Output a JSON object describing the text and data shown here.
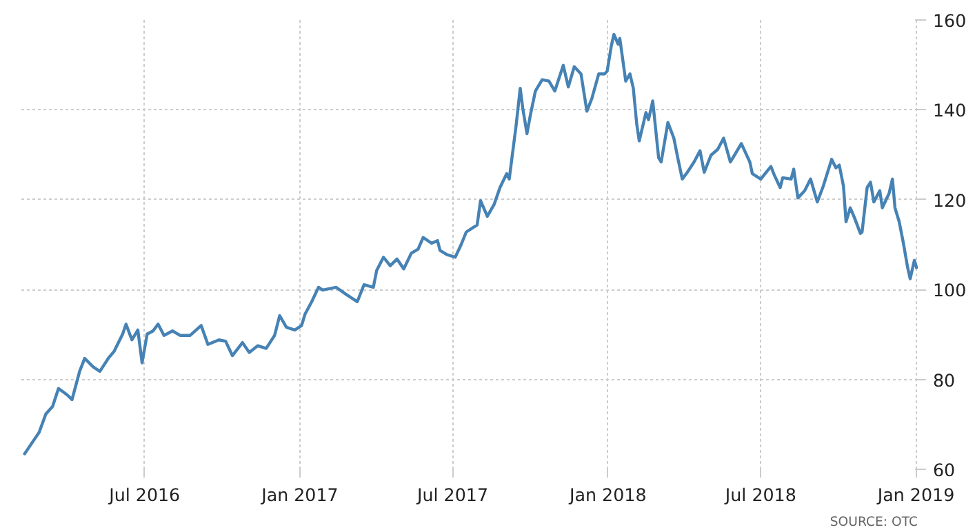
{
  "chart_data": {
    "type": "line",
    "x": [
      "2016-02-09",
      "2016-02-19",
      "2016-02-27",
      "2016-03-06",
      "2016-03-14",
      "2016-03-21",
      "2016-03-31",
      "2016-04-06",
      "2016-04-15",
      "2016-04-21",
      "2016-05-01",
      "2016-05-09",
      "2016-05-19",
      "2016-05-26",
      "2016-06-05",
      "2016-06-09",
      "2016-06-16",
      "2016-06-23",
      "2016-06-28",
      "2016-07-04",
      "2016-07-11",
      "2016-07-17",
      "2016-07-24",
      "2016-08-03",
      "2016-08-12",
      "2016-08-24",
      "2016-09-06",
      "2016-09-14",
      "2016-09-27",
      "2016-10-05",
      "2016-10-13",
      "2016-10-25",
      "2016-11-02",
      "2016-11-12",
      "2016-11-22",
      "2016-12-02",
      "2016-12-08",
      "2016-12-16",
      "2016-12-26",
      "2017-01-03",
      "2017-01-07",
      "2017-01-15",
      "2017-01-23",
      "2017-01-28",
      "2017-02-13",
      "2017-02-25",
      "2017-03-10",
      "2017-03-18",
      "2017-03-29",
      "2017-04-02",
      "2017-04-10",
      "2017-04-18",
      "2017-04-26",
      "2017-05-04",
      "2017-05-13",
      "2017-05-21",
      "2017-05-27",
      "2017-06-06",
      "2017-06-13",
      "2017-06-16",
      "2017-06-24",
      "2017-07-04",
      "2017-07-11",
      "2017-07-17",
      "2017-07-30",
      "2017-08-03",
      "2017-08-11",
      "2017-08-19",
      "2017-08-26",
      "2017-09-03",
      "2017-09-06",
      "2017-09-09",
      "2017-09-14",
      "2017-09-19",
      "2017-09-22",
      "2017-09-27",
      "2017-10-01",
      "2017-10-07",
      "2017-10-15",
      "2017-10-23",
      "2017-10-30",
      "2017-11-09",
      "2017-11-15",
      "2017-11-22",
      "2017-11-30",
      "2017-12-07",
      "2017-12-13",
      "2017-12-21",
      "2017-12-28",
      "2017-12-31",
      "2018-01-05",
      "2018-01-08",
      "2018-01-13",
      "2018-01-15",
      "2018-01-22",
      "2018-01-27",
      "2018-01-31",
      "2018-02-04",
      "2018-02-07",
      "2018-02-15",
      "2018-02-18",
      "2018-02-23",
      "2018-03-02",
      "2018-03-05",
      "2018-03-13",
      "2018-03-20",
      "2018-03-25",
      "2018-03-30",
      "2018-04-05",
      "2018-04-13",
      "2018-04-20",
      "2018-04-25",
      "2018-05-03",
      "2018-05-11",
      "2018-05-18",
      "2018-05-26",
      "2018-06-08",
      "2018-06-18",
      "2018-06-21",
      "2018-07-01",
      "2018-07-13",
      "2018-07-17",
      "2018-07-24",
      "2018-07-27",
      "2018-08-06",
      "2018-08-09",
      "2018-08-14",
      "2018-08-22",
      "2018-08-29",
      "2018-09-06",
      "2018-09-13",
      "2018-09-23",
      "2018-09-28",
      "2018-10-02",
      "2018-10-07",
      "2018-10-10",
      "2018-10-15",
      "2018-10-20",
      "2018-10-27",
      "2018-10-29",
      "2018-11-04",
      "2018-11-08",
      "2018-11-12",
      "2018-11-19",
      "2018-11-22",
      "2018-11-30",
      "2018-12-04",
      "2018-12-07",
      "2018-12-12",
      "2018-12-17",
      "2018-12-22",
      "2018-12-25",
      "2018-12-30",
      "2019-01-02"
    ],
    "series": [
      {
        "color": "#4682b4",
        "values": [
          63.2,
          66,
          68.2,
          72.3,
          74,
          78,
          76.6,
          75.5,
          81.8,
          84.7,
          82.8,
          81.8,
          84.7,
          86.3,
          90.1,
          92.3,
          88.8,
          91,
          83.7,
          90.1,
          90.8,
          92.3,
          89.8,
          90.8,
          89.8,
          89.8,
          92,
          87.8,
          88.8,
          88.5,
          85.3,
          88.2,
          86,
          87.5,
          86.9,
          89.8,
          94.2,
          91.6,
          91,
          92,
          94.5,
          97.3,
          100.5,
          99.9,
          100.5,
          98.9,
          97.3,
          101.1,
          100.5,
          104.3,
          107.2,
          105.3,
          106.8,
          104.6,
          108.1,
          109,
          111.6,
          110.3,
          110.9,
          108.7,
          107.8,
          107.2,
          110,
          112.8,
          114.4,
          119.8,
          116.3,
          118.9,
          122.7,
          125.8,
          124.6,
          129,
          136.3,
          144.8,
          140.4,
          134.7,
          138.8,
          144.2,
          146.7,
          146.4,
          144.2,
          149.9,
          145.1,
          149.6,
          148,
          139.7,
          142.6,
          148,
          148,
          148.6,
          154.3,
          156.8,
          154.6,
          155.9,
          146.4,
          148,
          144.8,
          136.9,
          133.1,
          139.4,
          137.8,
          142,
          129.3,
          128.4,
          137.2,
          133.7,
          129,
          124.6,
          126.1,
          128.4,
          130.9,
          126.1,
          129.9,
          131.2,
          133.7,
          128.4,
          132.5,
          128.4,
          125.8,
          124.6,
          127.4,
          125.5,
          122.7,
          124.9,
          124.6,
          126.8,
          120.4,
          122,
          124.6,
          119.5,
          123,
          129,
          127.1,
          127.7,
          123,
          115.1,
          118.2,
          116,
          112.5,
          112.8,
          122.7,
          123.9,
          119.5,
          122,
          118.2,
          121.4,
          124.6,
          118.2,
          115.1,
          110.3,
          104.9,
          102.4,
          106.5,
          104.6
        ]
      }
    ],
    "xlim": [
      "2016-02-06",
      "2019-01-03"
    ],
    "xticks": [
      {
        "value": "2016-07-01",
        "label": "Jul 2016"
      },
      {
        "value": "2017-01-01",
        "label": "Jan 2017"
      },
      {
        "value": "2017-07-01",
        "label": "Jul 2017"
      },
      {
        "value": "2018-01-01",
        "label": "Jan 2018"
      },
      {
        "value": "2018-07-01",
        "label": "Jul 2018"
      },
      {
        "value": "2019-01-01",
        "label": "Jan 2019"
      }
    ],
    "ylim": [
      60,
      160
    ],
    "yticks": [
      60,
      80,
      100,
      120,
      140,
      160
    ],
    "grid": true,
    "line_style": "solid",
    "annotations": [
      "SOURCE: OTC"
    ]
  }
}
